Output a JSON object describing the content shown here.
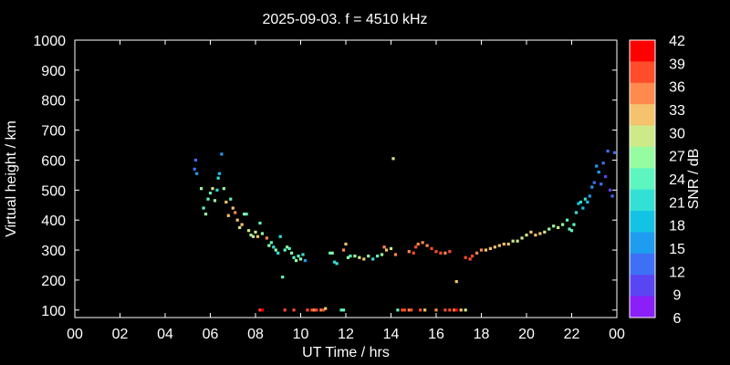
{
  "chart_data": {
    "type": "scatter",
    "title": "2025-09-03. f = 4510 kHz",
    "xlabel": "UT Time / hrs",
    "ylabel": "Virtual height / km",
    "xlim": [
      0,
      24
    ],
    "ylim": [
      75,
      1000
    ],
    "xticks": [
      "00",
      "02",
      "04",
      "06",
      "08",
      "10",
      "12",
      "14",
      "16",
      "18",
      "20",
      "22",
      "00"
    ],
    "yticks": [
      100,
      200,
      300,
      400,
      500,
      600,
      700,
      800,
      900,
      1000
    ],
    "colorbar": {
      "label": "SNR / dB",
      "ticks": [
        42,
        39,
        36,
        33,
        30,
        27,
        24,
        21,
        18,
        15,
        12,
        9,
        6
      ],
      "colors": [
        "#ff0000",
        "#ff4c2a",
        "#ff8a4e",
        "#f5c26e",
        "#cde98a",
        "#96fca0",
        "#5ef6c0",
        "#33e0d6",
        "#13c3e4",
        "#1e9cf0",
        "#3e70f5",
        "#5a45f2",
        "#8b1ff8"
      ]
    },
    "grid": false,
    "legend": "colorbar-right",
    "points": [
      {
        "x": 5.3,
        "y": 570,
        "snr": 12
      },
      {
        "x": 5.35,
        "y": 600,
        "snr": 12
      },
      {
        "x": 5.4,
        "y": 555,
        "snr": 15
      },
      {
        "x": 5.6,
        "y": 505,
        "snr": 27
      },
      {
        "x": 5.7,
        "y": 440,
        "snr": 24
      },
      {
        "x": 5.8,
        "y": 420,
        "snr": 27
      },
      {
        "x": 5.9,
        "y": 470,
        "snr": 24
      },
      {
        "x": 6.0,
        "y": 490,
        "snr": 24
      },
      {
        "x": 6.1,
        "y": 505,
        "snr": 30
      },
      {
        "x": 6.2,
        "y": 465,
        "snr": 27
      },
      {
        "x": 6.3,
        "y": 500,
        "snr": 21
      },
      {
        "x": 6.35,
        "y": 540,
        "snr": 21
      },
      {
        "x": 6.4,
        "y": 555,
        "snr": 18
      },
      {
        "x": 6.5,
        "y": 620,
        "snr": 15
      },
      {
        "x": 6.6,
        "y": 505,
        "snr": 27
      },
      {
        "x": 6.7,
        "y": 460,
        "snr": 33
      },
      {
        "x": 6.8,
        "y": 415,
        "snr": 33
      },
      {
        "x": 6.9,
        "y": 470,
        "snr": 24
      },
      {
        "x": 7.0,
        "y": 440,
        "snr": 33
      },
      {
        "x": 7.1,
        "y": 425,
        "snr": 36
      },
      {
        "x": 7.2,
        "y": 400,
        "snr": 33
      },
      {
        "x": 7.3,
        "y": 375,
        "snr": 30
      },
      {
        "x": 7.4,
        "y": 385,
        "snr": 33
      },
      {
        "x": 7.5,
        "y": 420,
        "snr": 27
      },
      {
        "x": 7.6,
        "y": 420,
        "snr": 24
      },
      {
        "x": 7.7,
        "y": 365,
        "snr": 30
      },
      {
        "x": 7.8,
        "y": 350,
        "snr": 27
      },
      {
        "x": 7.9,
        "y": 345,
        "snr": 30
      },
      {
        "x": 8.0,
        "y": 360,
        "snr": 30
      },
      {
        "x": 8.1,
        "y": 345,
        "snr": 33
      },
      {
        "x": 8.2,
        "y": 390,
        "snr": 24
      },
      {
        "x": 8.3,
        "y": 355,
        "snr": 27
      },
      {
        "x": 8.5,
        "y": 340,
        "snr": 36
      },
      {
        "x": 8.6,
        "y": 315,
        "snr": 27
      },
      {
        "x": 8.7,
        "y": 325,
        "snr": 24
      },
      {
        "x": 8.8,
        "y": 310,
        "snr": 21
      },
      {
        "x": 8.9,
        "y": 300,
        "snr": 27
      },
      {
        "x": 9.0,
        "y": 290,
        "snr": 21
      },
      {
        "x": 9.1,
        "y": 345,
        "snr": 21
      },
      {
        "x": 9.2,
        "y": 210,
        "snr": 24
      },
      {
        "x": 9.3,
        "y": 300,
        "snr": 24
      },
      {
        "x": 9.4,
        "y": 310,
        "snr": 27
      },
      {
        "x": 9.5,
        "y": 305,
        "snr": 24
      },
      {
        "x": 9.6,
        "y": 290,
        "snr": 27
      },
      {
        "x": 9.7,
        "y": 275,
        "snr": 24
      },
      {
        "x": 9.8,
        "y": 265,
        "snr": 27
      },
      {
        "x": 9.9,
        "y": 280,
        "snr": 24
      },
      {
        "x": 10.0,
        "y": 270,
        "snr": 27
      },
      {
        "x": 10.1,
        "y": 285,
        "snr": 21
      },
      {
        "x": 10.2,
        "y": 265,
        "snr": 15
      },
      {
        "x": 11.3,
        "y": 290,
        "snr": 24
      },
      {
        "x": 11.4,
        "y": 290,
        "snr": 27
      },
      {
        "x": 11.5,
        "y": 260,
        "snr": 21
      },
      {
        "x": 11.6,
        "y": 255,
        "snr": 21
      },
      {
        "x": 11.9,
        "y": 300,
        "snr": 36
      },
      {
        "x": 12.0,
        "y": 320,
        "snr": 33
      },
      {
        "x": 12.1,
        "y": 275,
        "snr": 27
      },
      {
        "x": 12.2,
        "y": 280,
        "snr": 24
      },
      {
        "x": 12.4,
        "y": 280,
        "snr": 27
      },
      {
        "x": 12.6,
        "y": 275,
        "snr": 30
      },
      {
        "x": 12.8,
        "y": 270,
        "snr": 33
      },
      {
        "x": 13.0,
        "y": 280,
        "snr": 27
      },
      {
        "x": 13.2,
        "y": 270,
        "snr": 21
      },
      {
        "x": 13.4,
        "y": 280,
        "snr": 24
      },
      {
        "x": 13.6,
        "y": 285,
        "snr": 27
      },
      {
        "x": 13.7,
        "y": 310,
        "snr": 36
      },
      {
        "x": 13.8,
        "y": 300,
        "snr": 33
      },
      {
        "x": 14.0,
        "y": 305,
        "snr": 30
      },
      {
        "x": 14.1,
        "y": 605,
        "snr": 30
      },
      {
        "x": 14.2,
        "y": 285,
        "snr": 36
      },
      {
        "x": 14.8,
        "y": 295,
        "snr": 36
      },
      {
        "x": 15.0,
        "y": 290,
        "snr": 39
      },
      {
        "x": 15.1,
        "y": 310,
        "snr": 39
      },
      {
        "x": 15.2,
        "y": 320,
        "snr": 36
      },
      {
        "x": 15.4,
        "y": 325,
        "snr": 36
      },
      {
        "x": 15.6,
        "y": 315,
        "snr": 36
      },
      {
        "x": 15.8,
        "y": 305,
        "snr": 39
      },
      {
        "x": 16.0,
        "y": 295,
        "snr": 39
      },
      {
        "x": 16.2,
        "y": 290,
        "snr": 39
      },
      {
        "x": 16.4,
        "y": 290,
        "snr": 36
      },
      {
        "x": 16.6,
        "y": 295,
        "snr": 39
      },
      {
        "x": 16.9,
        "y": 195,
        "snr": 33
      },
      {
        "x": 17.3,
        "y": 275,
        "snr": 39
      },
      {
        "x": 17.5,
        "y": 270,
        "snr": 39
      },
      {
        "x": 17.6,
        "y": 280,
        "snr": 39
      },
      {
        "x": 17.8,
        "y": 290,
        "snr": 36
      },
      {
        "x": 18.0,
        "y": 300,
        "snr": 36
      },
      {
        "x": 18.2,
        "y": 300,
        "snr": 33
      },
      {
        "x": 18.4,
        "y": 305,
        "snr": 33
      },
      {
        "x": 18.6,
        "y": 310,
        "snr": 33
      },
      {
        "x": 18.8,
        "y": 315,
        "snr": 33
      },
      {
        "x": 19.0,
        "y": 320,
        "snr": 33
      },
      {
        "x": 19.2,
        "y": 320,
        "snr": 33
      },
      {
        "x": 19.4,
        "y": 330,
        "snr": 30
      },
      {
        "x": 19.6,
        "y": 330,
        "snr": 30
      },
      {
        "x": 19.8,
        "y": 340,
        "snr": 30
      },
      {
        "x": 20.0,
        "y": 350,
        "snr": 30
      },
      {
        "x": 20.2,
        "y": 360,
        "snr": 33
      },
      {
        "x": 20.4,
        "y": 350,
        "snr": 33
      },
      {
        "x": 20.6,
        "y": 355,
        "snr": 33
      },
      {
        "x": 20.8,
        "y": 360,
        "snr": 30
      },
      {
        "x": 21.0,
        "y": 370,
        "snr": 27
      },
      {
        "x": 21.2,
        "y": 380,
        "snr": 27
      },
      {
        "x": 21.4,
        "y": 375,
        "snr": 30
      },
      {
        "x": 21.6,
        "y": 385,
        "snr": 27
      },
      {
        "x": 21.8,
        "y": 400,
        "snr": 24
      },
      {
        "x": 21.9,
        "y": 370,
        "snr": 24
      },
      {
        "x": 22.0,
        "y": 365,
        "snr": 24
      },
      {
        "x": 22.1,
        "y": 385,
        "snr": 24
      },
      {
        "x": 22.2,
        "y": 425,
        "snr": 21
      },
      {
        "x": 22.3,
        "y": 455,
        "snr": 18
      },
      {
        "x": 22.4,
        "y": 460,
        "snr": 21
      },
      {
        "x": 22.5,
        "y": 440,
        "snr": 18
      },
      {
        "x": 22.6,
        "y": 470,
        "snr": 21
      },
      {
        "x": 22.7,
        "y": 460,
        "snr": 18
      },
      {
        "x": 22.8,
        "y": 480,
        "snr": 15
      },
      {
        "x": 22.9,
        "y": 510,
        "snr": 15
      },
      {
        "x": 23.0,
        "y": 525,
        "snr": 12
      },
      {
        "x": 23.1,
        "y": 580,
        "snr": 15
      },
      {
        "x": 23.2,
        "y": 560,
        "snr": 15
      },
      {
        "x": 23.3,
        "y": 520,
        "snr": 12
      },
      {
        "x": 23.4,
        "y": 590,
        "snr": 12
      },
      {
        "x": 23.5,
        "y": 545,
        "snr": 9
      },
      {
        "x": 23.6,
        "y": 630,
        "snr": 12
      },
      {
        "x": 23.7,
        "y": 500,
        "snr": 9
      },
      {
        "x": 23.8,
        "y": 480,
        "snr": 12
      },
      {
        "x": 23.9,
        "y": 625,
        "snr": 12
      },
      {
        "x": 8.2,
        "y": 100,
        "snr": 39
      },
      {
        "x": 8.3,
        "y": 100,
        "snr": 42
      },
      {
        "x": 9.3,
        "y": 100,
        "snr": 39
      },
      {
        "x": 9.7,
        "y": 100,
        "snr": 39
      },
      {
        "x": 10.3,
        "y": 100,
        "snr": 39
      },
      {
        "x": 10.5,
        "y": 100,
        "snr": 39
      },
      {
        "x": 10.6,
        "y": 100,
        "snr": 36
      },
      {
        "x": 10.7,
        "y": 100,
        "snr": 39
      },
      {
        "x": 10.9,
        "y": 100,
        "snr": 36
      },
      {
        "x": 11.0,
        "y": 100,
        "snr": 39
      },
      {
        "x": 11.1,
        "y": 105,
        "snr": 33
      },
      {
        "x": 11.8,
        "y": 100,
        "snr": 24
      },
      {
        "x": 11.9,
        "y": 100,
        "snr": 24
      },
      {
        "x": 14.3,
        "y": 100,
        "snr": 24
      },
      {
        "x": 14.5,
        "y": 100,
        "snr": 39
      },
      {
        "x": 14.6,
        "y": 100,
        "snr": 39
      },
      {
        "x": 14.8,
        "y": 100,
        "snr": 36
      },
      {
        "x": 14.9,
        "y": 100,
        "snr": 39
      },
      {
        "x": 15.3,
        "y": 100,
        "snr": 39
      },
      {
        "x": 15.5,
        "y": 100,
        "snr": 33
      },
      {
        "x": 16.0,
        "y": 100,
        "snr": 36
      },
      {
        "x": 16.4,
        "y": 100,
        "snr": 39
      },
      {
        "x": 16.6,
        "y": 100,
        "snr": 39
      },
      {
        "x": 16.8,
        "y": 100,
        "snr": 36
      },
      {
        "x": 16.9,
        "y": 100,
        "snr": 42
      },
      {
        "x": 17.1,
        "y": 100,
        "snr": 33
      },
      {
        "x": 17.3,
        "y": 100,
        "snr": 30
      }
    ]
  }
}
